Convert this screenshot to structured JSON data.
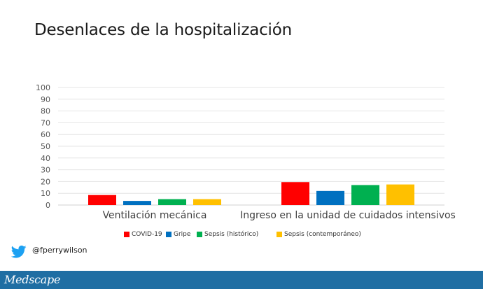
{
  "header": {
    "title": "Desenlaces de la hospitalización"
  },
  "chart_data": {
    "type": "bar",
    "title": "",
    "xlabel": "",
    "ylabel": "",
    "categories": [
      "Ventilación mecánica",
      "Ingreso en la unidad de cuidados intensivos"
    ],
    "series": [
      {
        "name": "COVID-19",
        "color": "#ff0000",
        "values": [
          8.5,
          19.5
        ]
      },
      {
        "name": "Gripe",
        "color": "#0070c0",
        "values": [
          3.5,
          12
        ]
      },
      {
        "name": "Sepsis (histórico)",
        "color": "#00b050",
        "values": [
          5,
          17
        ]
      },
      {
        "name": "Sepsis (contemporáneo)",
        "color": "#ffc000",
        "values": [
          5,
          17.5
        ]
      }
    ],
    "ylim": [
      0,
      100
    ],
    "yticks": [
      0,
      10,
      20,
      30,
      40,
      50,
      60,
      70,
      80,
      90,
      100
    ],
    "grid": true,
    "legend_position": "bottom"
  },
  "footer": {
    "twitter_icon": "twitter-bird-icon",
    "twitter_handle": "@fperrywilson",
    "logo": "Medscape",
    "logo_color": "#1f6ea3"
  }
}
